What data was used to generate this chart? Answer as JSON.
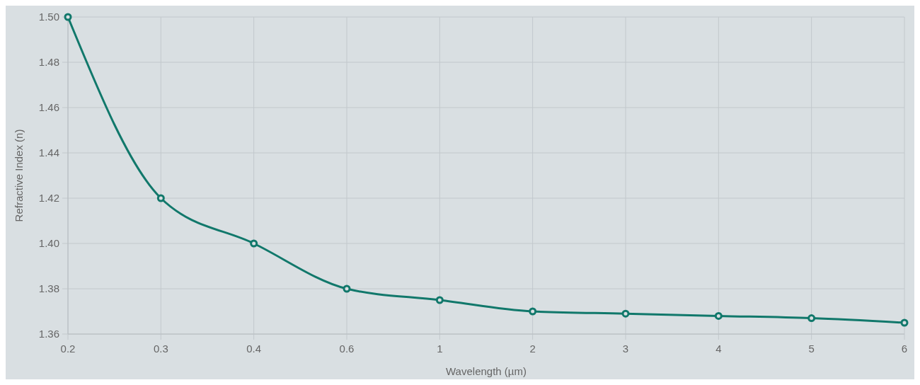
{
  "chart_data": {
    "type": "line",
    "xlabel": "Wavelength (µm)",
    "ylabel": "Refractive Index (n)",
    "categories": [
      "0.2",
      "0.3",
      "0.4",
      "0.6",
      "1",
      "2",
      "3",
      "4",
      "5",
      "6"
    ],
    "series": [
      {
        "color": "#11786b",
        "values": [
          1.5,
          1.42,
          1.4,
          1.38,
          1.375,
          1.37,
          1.369,
          1.368,
          1.367,
          1.365
        ]
      }
    ],
    "ylim": [
      1.36,
      1.5
    ],
    "yticks": [
      {
        "value": 1.36,
        "label": "1.36"
      },
      {
        "value": 1.38,
        "label": "1.38"
      },
      {
        "value": 1.4,
        "label": "1.40"
      },
      {
        "value": 1.42,
        "label": "1.42"
      },
      {
        "value": 1.44,
        "label": "1.44"
      },
      {
        "value": 1.46,
        "label": "1.46"
      },
      {
        "value": 1.48,
        "label": "1.48"
      },
      {
        "value": 1.5,
        "label": "1.50"
      }
    ],
    "grid": true,
    "marker": "circle",
    "line_style": "solid"
  }
}
